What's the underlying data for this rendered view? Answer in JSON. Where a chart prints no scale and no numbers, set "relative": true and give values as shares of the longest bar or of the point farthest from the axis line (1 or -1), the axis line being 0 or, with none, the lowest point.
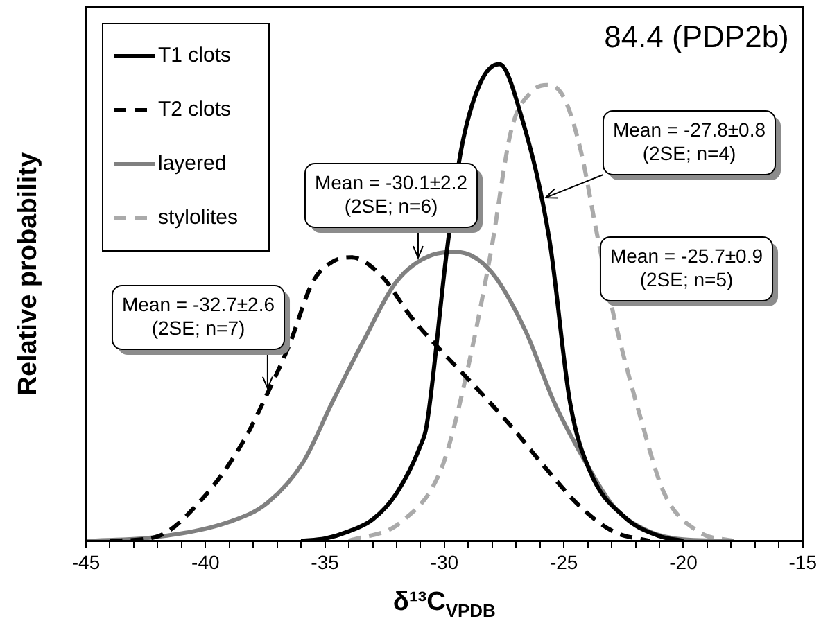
{
  "chart_data": {
    "type": "line",
    "title": "84.4 (PDP2b)",
    "xlabel": "δ¹³C$_{VPDB}$",
    "ylabel": "Relative probability",
    "relative": true,
    "legend": "top left",
    "grid": false,
    "marker": "none",
    "xlim": [
      -45,
      -15
    ],
    "xticks": [
      -45,
      {
        "value": -44,
        "label": null
      },
      {
        "value": -43,
        "label": null
      },
      {
        "value": -42,
        "label": null
      },
      {
        "value": -41,
        "label": null
      },
      -40,
      {
        "value": -39,
        "label": null
      },
      {
        "value": -38,
        "label": null
      },
      {
        "value": -37,
        "label": null
      },
      {
        "value": -36,
        "label": null
      },
      -35,
      {
        "value": -34,
        "label": null
      },
      {
        "value": -33,
        "label": null
      },
      {
        "value": -32,
        "label": null
      },
      {
        "value": -31,
        "label": null
      },
      -30,
      {
        "value": -29,
        "label": null
      },
      {
        "value": -28,
        "label": null
      },
      {
        "value": -27,
        "label": null
      },
      {
        "value": -26,
        "label": null
      },
      -25,
      {
        "value": -24,
        "label": null
      },
      {
        "value": -23,
        "label": null
      },
      {
        "value": -22,
        "label": null
      },
      {
        "value": -21,
        "label": null
      },
      -20,
      {
        "value": -19,
        "label": null
      },
      {
        "value": -18,
        "label": null
      },
      {
        "value": -17,
        "label": null
      },
      {
        "value": -16,
        "label": null
      },
      -15
    ],
    "series": [
      {
        "name": "T1 clots",
        "color": "#000000",
        "line_style": "solid",
        "x": [
          -36,
          -35,
          -34,
          -33,
          -32,
          -31,
          -30.75,
          -29.9,
          -29.3,
          -28.5,
          -27.7,
          -26.8,
          -25.6,
          -24.74,
          -23.9,
          -22.46,
          -21,
          -20
        ],
        "values": [
          0,
          0.005,
          0.02,
          0.045,
          0.1,
          0.2,
          0.24,
          0.607,
          0.82,
          0.96,
          1,
          0.894,
          0.63,
          0.29,
          0.145,
          0.05,
          0.01,
          0
        ]
      },
      {
        "name": "T2 clots",
        "color": "#000000",
        "line_style": "dashed",
        "x": [
          -44,
          -42.1,
          -40.1,
          -38.4,
          -37.4,
          -36.5,
          -35.5,
          -34.7,
          -33.9,
          -32.6,
          -31.4,
          -30.1,
          -28.7,
          -27.2,
          -25.8,
          -24.3,
          -22.9,
          -21.4
        ],
        "values": [
          0,
          0.008,
          0.09,
          0.21,
          0.31,
          0.41,
          0.544,
          0.585,
          0.595,
          0.554,
          0.47,
          0.397,
          0.323,
          0.24,
          0.155,
          0.071,
          0.019,
          0
        ]
      },
      {
        "name": "layered",
        "color": "#808080",
        "line_style": "solid",
        "x": [
          -45,
          -42.1,
          -39,
          -37.4,
          -35.9,
          -34.7,
          -33.4,
          -32,
          -30.5,
          -29.5,
          -28.05,
          -26.6,
          -25.4,
          -24.1,
          -22.9,
          -21.4,
          -20,
          -17.9
        ],
        "values": [
          0,
          0.008,
          0.04,
          0.08,
          0.166,
          0.29,
          0.418,
          0.544,
          0.6,
          0.606,
          0.565,
          0.44,
          0.29,
          0.166,
          0.071,
          0.019,
          0.003,
          0
        ]
      },
      {
        "name": "stylolites",
        "color": "#aaaaaa",
        "line_style": "dashed",
        "x": [
          -34,
          -31.8,
          -30.1,
          -29.1,
          -28.05,
          -27.2,
          -26.4,
          -25.7,
          -25,
          -24.3,
          -23.6,
          -22.9,
          -21.8,
          -20.8,
          -19.35,
          -17.9
        ],
        "values": [
          0,
          0.04,
          0.155,
          0.344,
          0.607,
          0.862,
          0.94,
          0.956,
          0.93,
          0.82,
          0.64,
          0.47,
          0.26,
          0.1,
          0.019,
          0
        ]
      }
    ],
    "annotations": [
      {
        "text": "Mean = -32.7±2.6\n(2SE; n=7)",
        "x": -37.4,
        "y": 0.32
      },
      {
        "text": "Mean = -30.1±2.2\n(2SE; n=6)",
        "x": -31.1,
        "y": 0.594
      },
      {
        "text": "Mean = -27.8±0.8\n(2SE; n=4)",
        "x": -25.76,
        "y": 0.72
      },
      "Mean = -25.7±0.9\n(2SE; n=5)"
    ]
  }
}
